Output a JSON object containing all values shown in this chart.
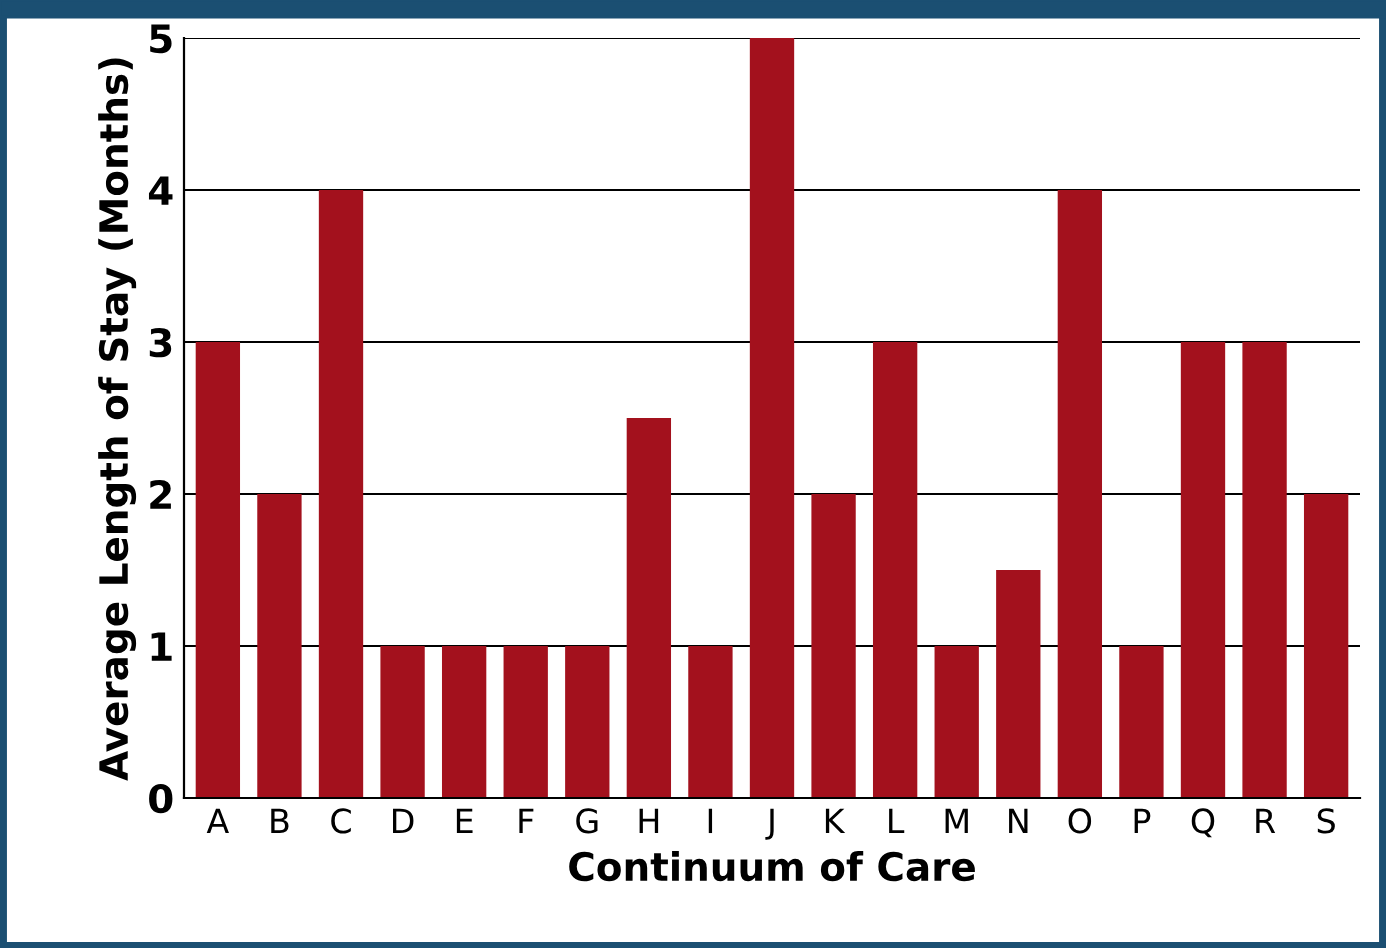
{
  "chart_data": {
    "type": "bar",
    "xlabel": "Continuum of Care",
    "ylabel": "Average Length of Stay (Months)",
    "categories": [
      "A",
      "B",
      "C",
      "D",
      "E",
      "F",
      "G",
      "H",
      "I",
      "J",
      "K",
      "L",
      "M",
      "N",
      "O",
      "P",
      "Q",
      "R",
      "S"
    ],
    "values": [
      3,
      2,
      4,
      1,
      1,
      1,
      1,
      2.5,
      1,
      5,
      2,
      3,
      1,
      1.5,
      4,
      1,
      3,
      3,
      2
    ],
    "color": "#a3111d",
    "ylim": [
      0,
      5
    ],
    "yticks": [
      0,
      1,
      2,
      3,
      4,
      5
    ],
    "grid": "y"
  }
}
